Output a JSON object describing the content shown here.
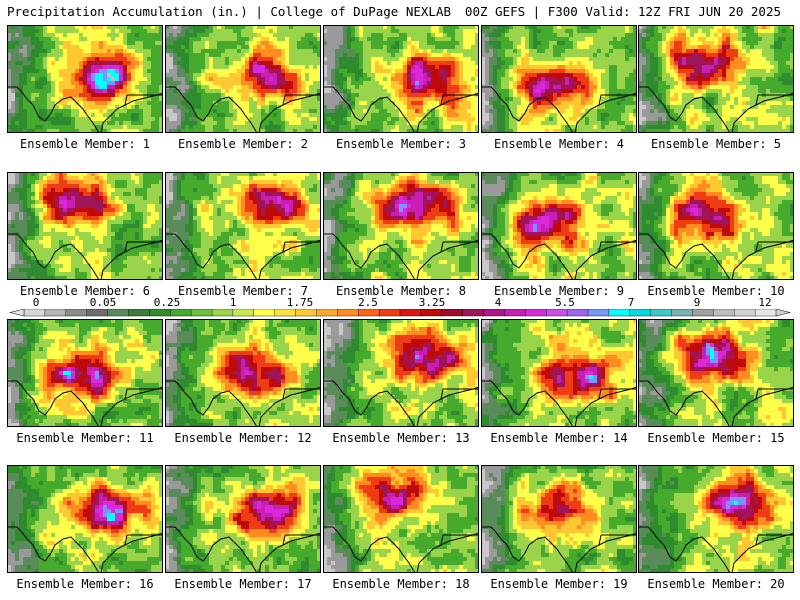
{
  "header": {
    "left_title": "Precipitation Accumulation (in.) | College of DuPage NEXLAB",
    "right_title": "00Z GEFS | F300 Valid: 12Z FRI JUN 20 2025"
  },
  "colorbar": {
    "tick_labels": [
      "0",
      "0.05",
      "0.25",
      "1",
      "1.75",
      "2.5",
      "3.25",
      "4",
      "5.5",
      "7",
      "9",
      "12"
    ],
    "colors": [
      "#d7d7d7",
      "#b4b4b4",
      "#8c8c8c",
      "#6e6e6e",
      "#5a8c5a",
      "#3c7d3c",
      "#2e8b2e",
      "#46aa2d",
      "#6cc23c",
      "#9ad44a",
      "#c8e650",
      "#ffff4b",
      "#ffe13c",
      "#ffc832",
      "#ffaa28",
      "#ff8c1e",
      "#ff6419",
      "#f03c14",
      "#dc1414",
      "#be0a0a",
      "#a00a28",
      "#a0145a",
      "#b4148c",
      "#c81eb4",
      "#dc28dc",
      "#c850e6",
      "#a064f0",
      "#7896fa",
      "#00ffff",
      "#00dcdc",
      "#3cc8c8",
      "#78b4b4",
      "#a0a0a0",
      "#bebebe",
      "#d2d2d2",
      "#e6e6e6"
    ]
  },
  "panels": [
    {
      "label": "Ensemble Member: 1"
    },
    {
      "label": "Ensemble Member: 2"
    },
    {
      "label": "Ensemble Member: 3"
    },
    {
      "label": "Ensemble Member: 4"
    },
    {
      "label": "Ensemble Member: 5"
    },
    {
      "label": "Ensemble Member: 6"
    },
    {
      "label": "Ensemble Member: 7"
    },
    {
      "label": "Ensemble Member: 8"
    },
    {
      "label": "Ensemble Member: 9"
    },
    {
      "label": "Ensemble Member: 10"
    },
    {
      "label": "Ensemble Member: 11"
    },
    {
      "label": "Ensemble Member: 12"
    },
    {
      "label": "Ensemble Member: 13"
    },
    {
      "label": "Ensemble Member: 14"
    },
    {
      "label": "Ensemble Member: 15"
    },
    {
      "label": "Ensemble Member: 16"
    },
    {
      "label": "Ensemble Member: 17"
    },
    {
      "label": "Ensemble Member: 18"
    },
    {
      "label": "Ensemble Member: 19"
    },
    {
      "label": "Ensemble Member: 20"
    }
  ]
}
